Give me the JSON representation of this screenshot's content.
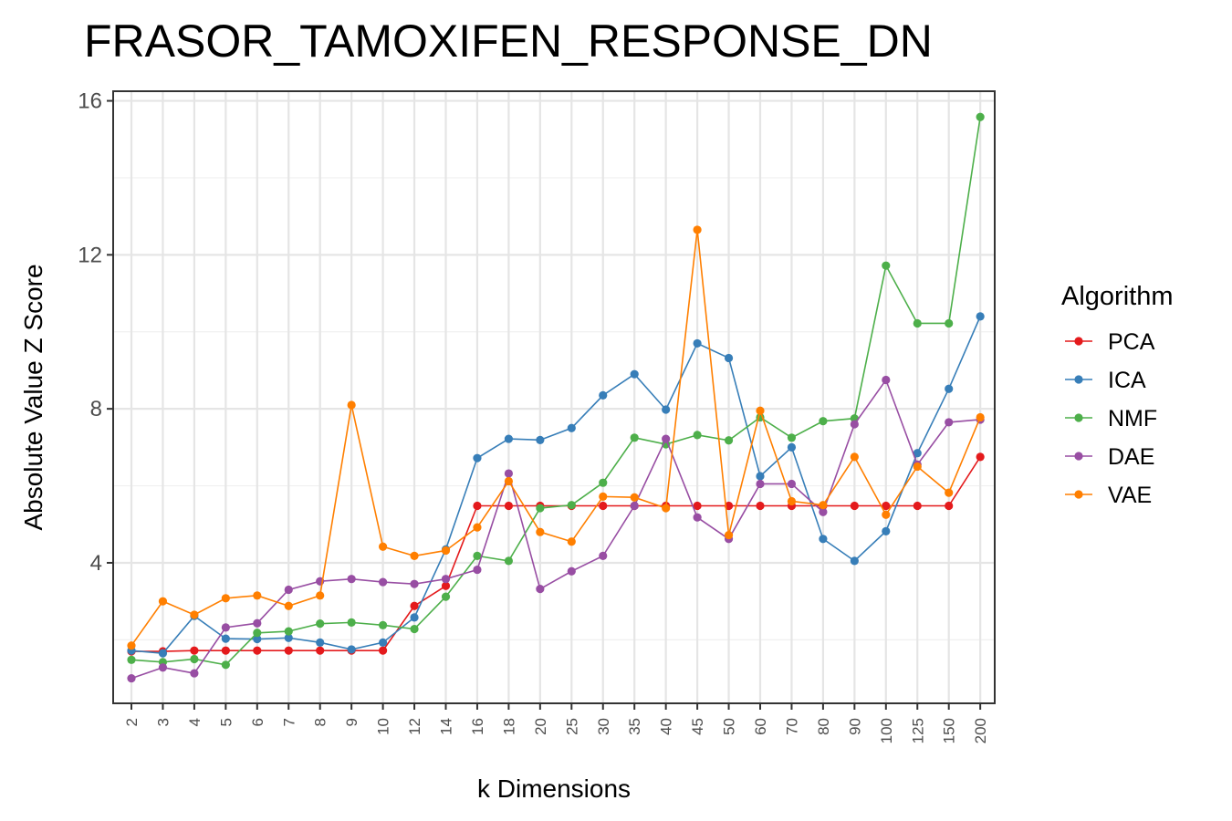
{
  "chart_data": {
    "type": "line",
    "title": "FRASOR_TAMOXIFEN_RESPONSE_DN",
    "xlabel": "k Dimensions",
    "ylabel": "Absolute Value Z Score",
    "categories": [
      "2",
      "3",
      "4",
      "5",
      "6",
      "7",
      "8",
      "9",
      "10",
      "12",
      "14",
      "16",
      "18",
      "20",
      "25",
      "30",
      "35",
      "40",
      "45",
      "50",
      "60",
      "70",
      "80",
      "90",
      "100",
      "125",
      "150",
      "200"
    ],
    "yticks": [
      4,
      8,
      12,
      16
    ],
    "ylim": [
      0.35,
      16.25
    ],
    "grid": true,
    "legend": {
      "title": "Algorithm",
      "position": "right"
    },
    "series": [
      {
        "name": "PCA",
        "color": "#e41a1c",
        "values": [
          1.7,
          1.7,
          1.72,
          1.72,
          1.72,
          1.72,
          1.72,
          1.72,
          1.72,
          2.88,
          3.4,
          5.48,
          5.48,
          5.48,
          5.48,
          5.48,
          5.48,
          5.48,
          5.48,
          5.48,
          5.48,
          5.48,
          5.48,
          5.48,
          5.48,
          5.48,
          5.48,
          6.75
        ]
      },
      {
        "name": "ICA",
        "color": "#377eb8",
        "values": [
          1.72,
          1.65,
          2.62,
          2.03,
          2.02,
          2.05,
          1.93,
          1.75,
          1.93,
          2.58,
          4.35,
          6.72,
          7.22,
          7.19,
          7.5,
          8.35,
          8.9,
          7.98,
          9.7,
          9.32,
          6.25,
          7.0,
          4.62,
          4.05,
          4.82,
          6.85,
          8.52,
          10.4
        ]
      },
      {
        "name": "NMF",
        "color": "#4daf4a",
        "values": [
          1.48,
          1.42,
          1.5,
          1.35,
          2.18,
          2.22,
          2.42,
          2.45,
          2.38,
          2.28,
          3.12,
          4.18,
          4.05,
          5.42,
          5.5,
          6.08,
          7.25,
          7.08,
          7.32,
          7.18,
          7.78,
          7.25,
          7.68,
          7.75,
          11.72,
          10.22,
          10.22,
          15.58
        ]
      },
      {
        "name": "DAE",
        "color": "#984ea3",
        "values": [
          1.0,
          1.28,
          1.13,
          2.32,
          2.43,
          3.3,
          3.52,
          3.58,
          3.5,
          3.45,
          3.58,
          3.82,
          6.32,
          3.32,
          3.78,
          4.18,
          5.48,
          7.22,
          5.18,
          4.62,
          6.05,
          6.05,
          5.32,
          7.6,
          8.75,
          6.55,
          7.65,
          7.72
        ]
      },
      {
        "name": "VAE",
        "color": "#ff7f00",
        "values": [
          1.85,
          3.0,
          2.65,
          3.08,
          3.15,
          2.88,
          3.15,
          8.1,
          4.42,
          4.18,
          4.32,
          4.92,
          6.12,
          4.8,
          4.55,
          5.72,
          5.7,
          5.42,
          12.65,
          4.72,
          7.95,
          5.6,
          5.5,
          6.75,
          5.25,
          6.5,
          5.82,
          7.78
        ]
      }
    ]
  }
}
